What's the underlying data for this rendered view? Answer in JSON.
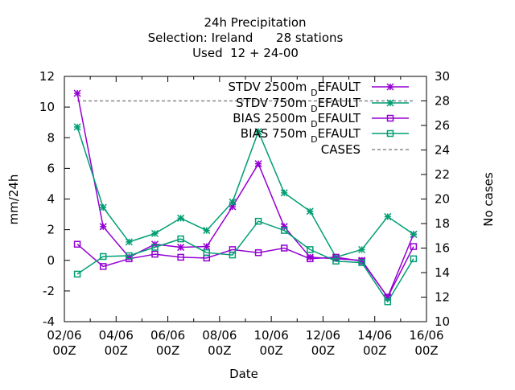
{
  "chart_data": {
    "type": "line",
    "title_lines": [
      "24h Precipitation",
      "Selection: Ireland      28 stations",
      "Used  12 + 24-00"
    ],
    "xlabel": "Date",
    "ylabel": "mm/24h",
    "y2label": "No cases",
    "x_tick_labels": [
      {
        "x": 0,
        "lines": [
          "02/06",
          "00Z"
        ]
      },
      {
        "x": 2,
        "lines": [
          "04/06",
          "00Z"
        ]
      },
      {
        "x": 4,
        "lines": [
          "06/06",
          "00Z"
        ]
      },
      {
        "x": 6,
        "lines": [
          "08/06",
          "00Z"
        ]
      },
      {
        "x": 8,
        "lines": [
          "10/06",
          "00Z"
        ]
      },
      {
        "x": 10,
        "lines": [
          "12/06",
          "00Z"
        ]
      },
      {
        "x": 12,
        "lines": [
          "14/06",
          "00Z"
        ]
      },
      {
        "x": 14,
        "lines": [
          "16/06",
          "00Z"
        ]
      }
    ],
    "xlim": [
      0,
      14
    ],
    "ylim": [
      -4,
      12
    ],
    "y_ticks": [
      -4,
      -2,
      0,
      2,
      4,
      6,
      8,
      10,
      12
    ],
    "y2lim": [
      10,
      30
    ],
    "y2_ticks": [
      10,
      12,
      14,
      16,
      18,
      20,
      22,
      24,
      26,
      28,
      30
    ],
    "legend_position": "top-right",
    "x": [
      0.5,
      1.5,
      2.5,
      3.5,
      4.5,
      5.5,
      6.5,
      7.5,
      8.5,
      9.5,
      10.5,
      11.5,
      12.5,
      13.5
    ],
    "series": [
      {
        "name": "STDV 2500m",
        "suffix": "EFAULT",
        "sub": "D",
        "color": "#9400d3",
        "marker": "star",
        "dashed": false,
        "axis": "y",
        "values": [
          10.9,
          2.2,
          0.2,
          1.05,
          0.85,
          0.9,
          3.5,
          6.3,
          2.2,
          0.2,
          0.1,
          0.0,
          -2.4,
          1.7
        ]
      },
      {
        "name": "STDV 750m",
        "suffix": "EFAULT",
        "sub": "D",
        "color": "#009e73",
        "marker": "star",
        "dashed": false,
        "axis": "y",
        "values": [
          8.7,
          3.45,
          1.2,
          1.75,
          2.75,
          1.95,
          3.8,
          8.4,
          4.4,
          3.2,
          0.2,
          0.7,
          2.85,
          1.7
        ]
      },
      {
        "name": "BIAS 2500m",
        "suffix": "EFAULT",
        "sub": "D",
        "color": "#9400d3",
        "marker": "square",
        "dashed": false,
        "axis": "y",
        "values": [
          1.05,
          -0.4,
          0.1,
          0.4,
          0.2,
          0.15,
          0.7,
          0.5,
          0.8,
          0.1,
          0.2,
          -0.05,
          -2.4,
          0.9
        ]
      },
      {
        "name": "BIAS 750m",
        "suffix": "EFAULT",
        "sub": "D",
        "color": "#009e73",
        "marker": "square",
        "dashed": false,
        "axis": "y",
        "values": [
          -0.9,
          0.25,
          0.3,
          0.85,
          1.4,
          0.5,
          0.35,
          2.55,
          1.95,
          0.7,
          -0.05,
          -0.15,
          -2.7,
          0.1
        ]
      },
      {
        "name": "CASES",
        "suffix": "",
        "sub": "",
        "color": "#888888",
        "marker": "none",
        "dashed": true,
        "axis": "y2",
        "values": [
          28,
          28,
          28,
          28,
          28,
          28,
          28,
          28,
          28,
          28,
          28,
          28,
          28,
          28
        ]
      }
    ]
  }
}
